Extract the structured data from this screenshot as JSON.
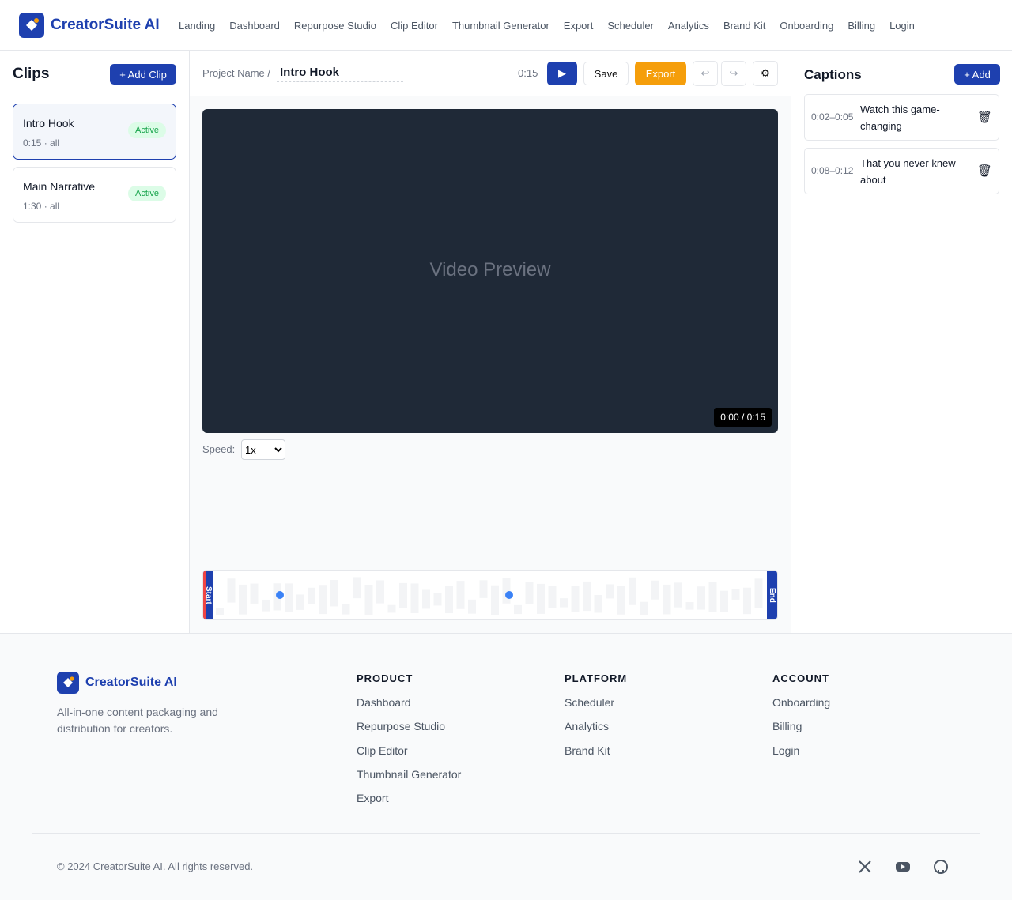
{
  "header": {
    "brand": "CreatorSuite AI",
    "nav": [
      "Landing",
      "Dashboard",
      "Repurpose Studio",
      "Clip Editor",
      "Thumbnail Generator",
      "Export",
      "Scheduler",
      "Analytics",
      "Brand Kit",
      "Onboarding",
      "Billing",
      "Login"
    ]
  },
  "clips": {
    "title": "Clips",
    "add_button": "+ Add Clip",
    "items": [
      {
        "name": "Intro Hook",
        "meta": "0:15 · all",
        "status": "Active"
      },
      {
        "name": "Main Narrative",
        "meta": "1:30 · all",
        "status": "Active"
      }
    ]
  },
  "editor": {
    "project_label": "Project Name /",
    "project_name": "Intro Hook",
    "duration": "0:15",
    "play": "▶",
    "save": "Save",
    "export": "Export",
    "undo": "↩",
    "redo": "↪",
    "settings": "⚙",
    "preview": "Video Preview",
    "timecode": "0:00 / 0:15",
    "speed_label": "Speed:",
    "speed_value": "1x",
    "timeline_start": "Start",
    "timeline_end": "End"
  },
  "captions": {
    "title": "Captions",
    "add_button": "+ Add",
    "items": [
      {
        "time": "0:02–0:05",
        "text": "Watch this game-changing",
        "delete": "🗑"
      },
      {
        "time": "0:08–0:12",
        "text": "That you never knew about",
        "delete": "🗑"
      }
    ]
  },
  "footer": {
    "brand": "CreatorSuite AI",
    "tagline": "All-in-one content packaging and distribution for creators.",
    "columns": [
      {
        "heading": "PRODUCT",
        "links": [
          "Dashboard",
          "Repurpose Studio",
          "Clip Editor",
          "Thumbnail Generator",
          "Export"
        ]
      },
      {
        "heading": "PLATFORM",
        "links": [
          "Scheduler",
          "Analytics",
          "Brand Kit"
        ]
      },
      {
        "heading": "ACCOUNT",
        "links": [
          "Onboarding",
          "Billing",
          "Login"
        ]
      }
    ],
    "copyright": "© 2024 CreatorSuite AI. All rights reserved."
  }
}
